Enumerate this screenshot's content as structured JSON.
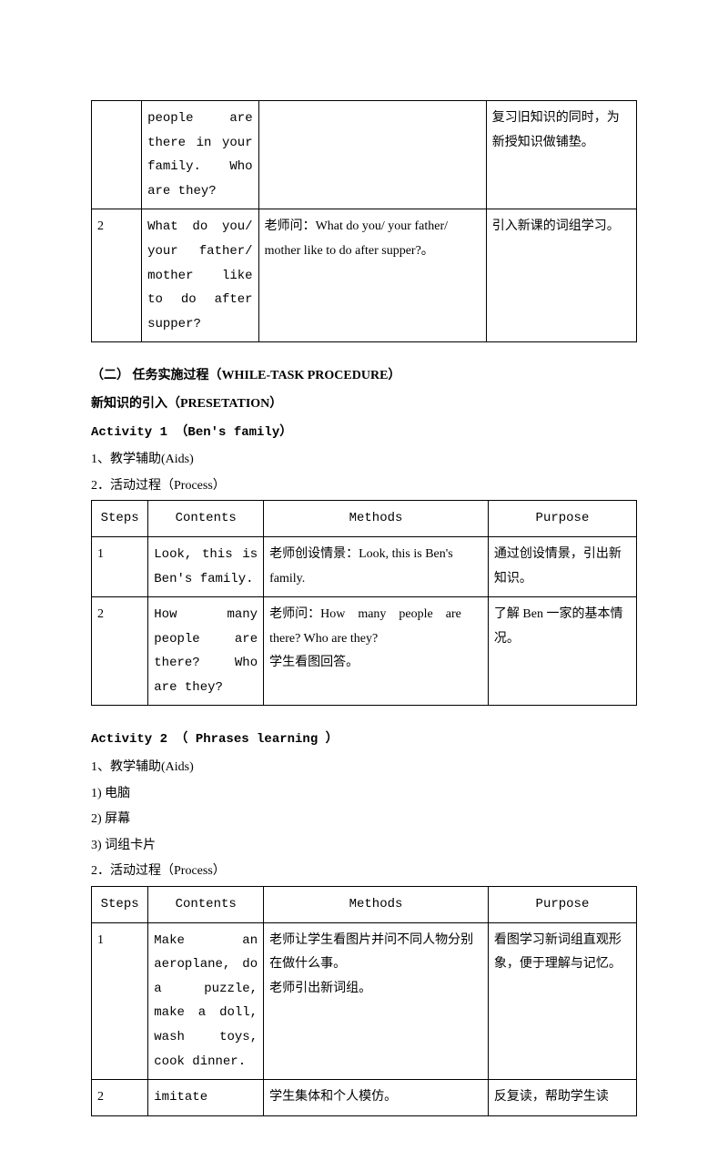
{
  "table1": {
    "rows": [
      {
        "step": "",
        "contents": "people are there in your family. Who are they?",
        "methods": "",
        "purpose": "复习旧知识的同时，为新授知识做铺垫。"
      },
      {
        "step": "2",
        "contents": "What do you/ your father/ mother like to do after supper?",
        "methods": "老师问：What do you/ your father/ mother like to do after supper?。",
        "purpose": "引入新课的词组学习。"
      }
    ]
  },
  "section2": {
    "title": "（二） 任务实施过程（WHILE-TASK PROCEDURE）",
    "subtitle": "新知识的引入（PRESETATION）"
  },
  "activity1": {
    "title": "Activity 1 （Ben's family）",
    "line1": "1、教学辅助(Aids)",
    "line2": "2．活动过程（Process）",
    "headers": {
      "steps": "Steps",
      "contents": "Contents",
      "methods": "Methods",
      "purpose": "Purpose"
    },
    "rows": [
      {
        "step": "1",
        "contents": "Look, this is Ben's family.",
        "methods": "老师创设情景：Look, this is Ben's family.",
        "purpose": "通过创设情景，引出新知识。"
      },
      {
        "step": "2",
        "contents": "How many people are there? Who are they?",
        "methods_line1": "老师问：How　many　people　are there? Who are they?",
        "methods_line2": "学生看图回答。",
        "purpose": "了解 Ben 一家的基本情况。"
      }
    ]
  },
  "activity2": {
    "title": "Activity 2 （ Phrases learning ）",
    "line1": "1、教学辅助(Aids)",
    "line2": "1) 电脑",
    "line3": "2) 屏幕",
    "line4": "3) 词组卡片",
    "line5": "2．活动过程（Process）",
    "headers": {
      "steps": "Steps",
      "contents": "Contents",
      "methods": "Methods",
      "purpose": "Purpose"
    },
    "rows": [
      {
        "step": "1",
        "contents": "Make an aeroplane, do a puzzle, make a doll, wash toys, cook dinner.",
        "methods_line1": "老师让学生看图片并问不同人物分别在做什么事。",
        "methods_line2": "老师引出新词组。",
        "purpose": "看图学习新词组直观形象，便于理解与记忆。"
      },
      {
        "step": "2",
        "contents": "imitate",
        "methods": "学生集体和个人模仿。",
        "purpose": "反复读，帮助学生读"
      }
    ]
  }
}
